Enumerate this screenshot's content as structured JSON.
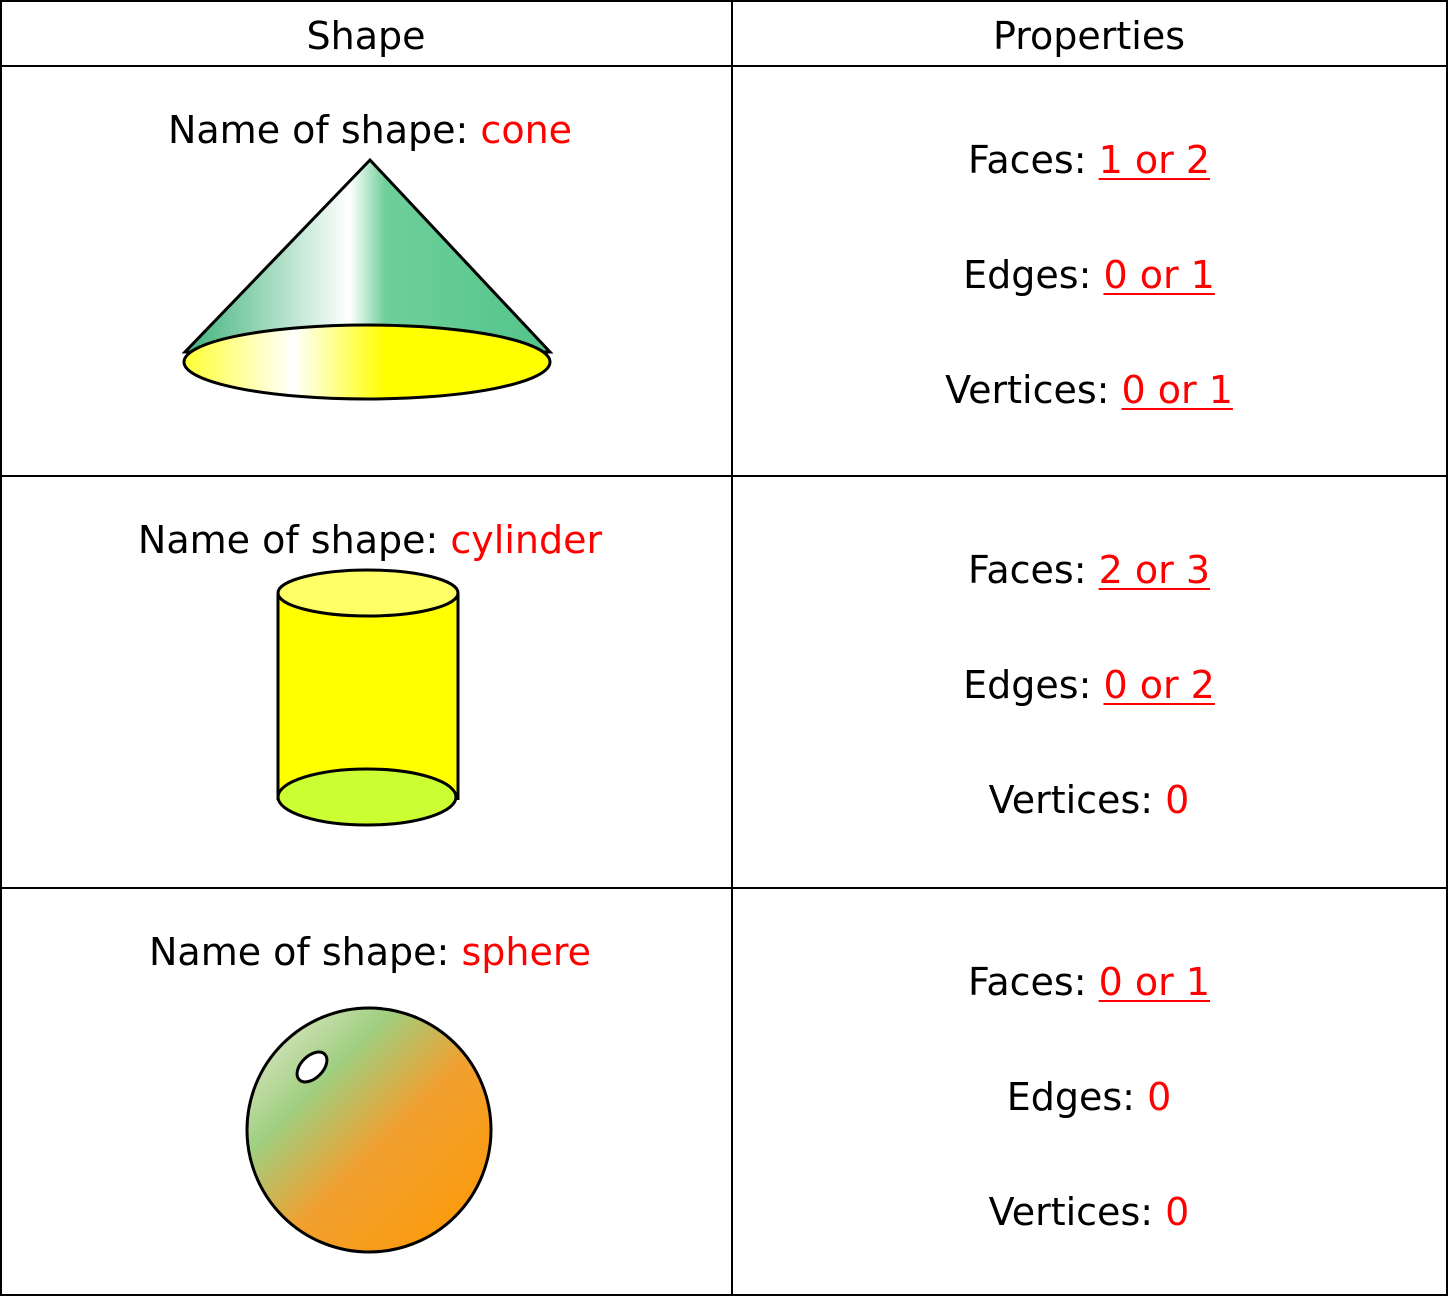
{
  "table": {
    "header": [
      "Shape",
      "Properties"
    ],
    "rows": [
      {
        "name_label": "Name of shape:",
        "name": "cone",
        "properties": [
          {
            "label": "Faces:",
            "value": "1 or 2",
            "underlined": true
          },
          {
            "label": "Edges:",
            "value": "0 or 1",
            "underlined": true
          },
          {
            "label": "Vertices:",
            "value": "0 or 1",
            "underlined": true
          }
        ]
      },
      {
        "name_label": "Name of shape:",
        "name": "cylinder",
        "properties": [
          {
            "label": "Faces:",
            "value": "2 or 3",
            "underlined": true
          },
          {
            "label": "Edges:",
            "value": "0 or 2",
            "underlined": true
          },
          {
            "label": "Vertices:",
            "value": "0",
            "underlined": false
          }
        ]
      },
      {
        "name_label": "Name of shape:",
        "name": "sphere",
        "properties": [
          {
            "label": "Faces:",
            "value": "0 or 1",
            "underlined": true
          },
          {
            "label": "Edges:",
            "value": "0",
            "underlined": false
          },
          {
            "label": "Vertices:",
            "value": "0",
            "underlined": false
          }
        ]
      }
    ]
  }
}
